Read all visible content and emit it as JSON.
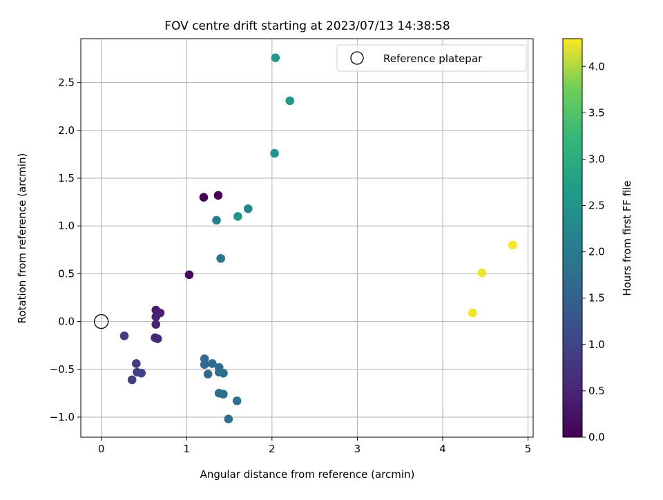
{
  "chart_data": {
    "type": "scatter",
    "title": "FOV centre drift starting at 2023/07/13 14:38:58",
    "xlabel": "Angular distance from reference (arcmin)",
    "ylabel": "Rotation from reference (arcmin)",
    "xlim": [
      -0.24,
      5.06
    ],
    "ylim": [
      -1.21,
      2.96
    ],
    "grid": true,
    "xticks": [
      {
        "v": 0,
        "label": "0"
      },
      {
        "v": 1,
        "label": "1"
      },
      {
        "v": 2,
        "label": "2"
      },
      {
        "v": 3,
        "label": "3"
      },
      {
        "v": 4,
        "label": "4"
      },
      {
        "v": 5,
        "label": "5"
      }
    ],
    "yticks": [
      {
        "v": -1.0,
        "label": "−1.0"
      },
      {
        "v": -0.5,
        "label": "−0.5"
      },
      {
        "v": 0.0,
        "label": "0.0"
      },
      {
        "v": 0.5,
        "label": "0.5"
      },
      {
        "v": 1.0,
        "label": "1.0"
      },
      {
        "v": 1.5,
        "label": "1.5"
      },
      {
        "v": 2.0,
        "label": "2.0"
      },
      {
        "v": 2.5,
        "label": "2.5"
      }
    ],
    "legend": {
      "position": "top-right",
      "label": "Reference platepar"
    },
    "reference_point": {
      "x": 0,
      "y": 0
    },
    "colorbar": {
      "label": "Hours from first FF file",
      "colormap": "viridis",
      "min": 0.0,
      "max": 4.3,
      "ticks": [
        {
          "v": 0.0,
          "label": "0.0"
        },
        {
          "v": 0.5,
          "label": "0.5"
        },
        {
          "v": 1.0,
          "label": "1.0"
        },
        {
          "v": 1.5,
          "label": "1.5"
        },
        {
          "v": 2.0,
          "label": "2.0"
        },
        {
          "v": 2.5,
          "label": "2.5"
        },
        {
          "v": 3.0,
          "label": "3.0"
        },
        {
          "v": 3.5,
          "label": "3.5"
        },
        {
          "v": 4.0,
          "label": "4.0"
        }
      ]
    },
    "points": [
      {
        "x": 1.37,
        "y": 1.32,
        "c": 0.02
      },
      {
        "x": 1.2,
        "y": 1.3,
        "c": 0.05
      },
      {
        "x": 1.03,
        "y": 0.49,
        "c": 0.15
      },
      {
        "x": 0.64,
        "y": 0.12,
        "c": 0.4
      },
      {
        "x": 0.69,
        "y": 0.09,
        "c": 0.45
      },
      {
        "x": 0.64,
        "y": 0.05,
        "c": 0.45
      },
      {
        "x": 0.64,
        "y": -0.03,
        "c": 0.5
      },
      {
        "x": 0.63,
        "y": -0.17,
        "c": 0.55
      },
      {
        "x": 0.66,
        "y": -0.18,
        "c": 0.55
      },
      {
        "x": 0.27,
        "y": -0.15,
        "c": 0.9
      },
      {
        "x": 0.41,
        "y": -0.44,
        "c": 0.85
      },
      {
        "x": 0.42,
        "y": -0.53,
        "c": 0.9
      },
      {
        "x": 0.47,
        "y": -0.54,
        "c": 0.95
      },
      {
        "x": 0.36,
        "y": -0.61,
        "c": 0.9
      },
      {
        "x": 1.21,
        "y": -0.39,
        "c": 1.7
      },
      {
        "x": 1.21,
        "y": -0.45,
        "c": 1.65
      },
      {
        "x": 1.3,
        "y": -0.44,
        "c": 1.65
      },
      {
        "x": 1.38,
        "y": -0.48,
        "c": 1.7
      },
      {
        "x": 1.38,
        "y": -0.53,
        "c": 1.7
      },
      {
        "x": 1.43,
        "y": -0.54,
        "c": 1.75
      },
      {
        "x": 1.25,
        "y": -0.55,
        "c": 1.65
      },
      {
        "x": 1.38,
        "y": -0.75,
        "c": 1.75
      },
      {
        "x": 1.43,
        "y": -0.76,
        "c": 1.75
      },
      {
        "x": 1.59,
        "y": -0.83,
        "c": 1.8
      },
      {
        "x": 1.49,
        "y": -1.02,
        "c": 1.75
      },
      {
        "x": 1.4,
        "y": 0.66,
        "c": 1.95
      },
      {
        "x": 1.35,
        "y": 1.06,
        "c": 2.1
      },
      {
        "x": 1.72,
        "y": 1.18,
        "c": 2.2
      },
      {
        "x": 1.6,
        "y": 1.1,
        "c": 2.55
      },
      {
        "x": 2.03,
        "y": 1.76,
        "c": 2.5
      },
      {
        "x": 2.21,
        "y": 2.31,
        "c": 2.55
      },
      {
        "x": 2.04,
        "y": 2.76,
        "c": 2.6
      },
      {
        "x": 4.35,
        "y": 0.09,
        "c": 4.25
      },
      {
        "x": 4.46,
        "y": 0.51,
        "c": 4.25
      },
      {
        "x": 4.82,
        "y": 0.8,
        "c": 4.28
      }
    ]
  }
}
